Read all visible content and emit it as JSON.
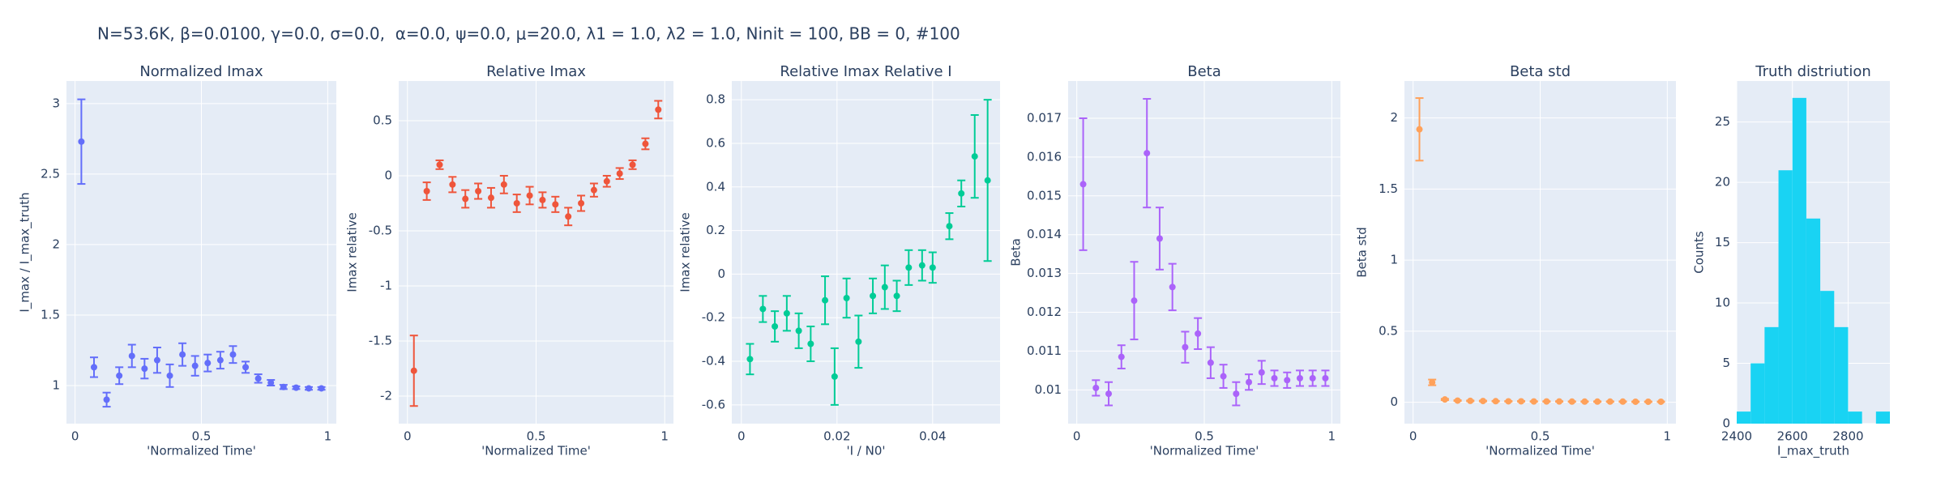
{
  "title": "N=53.6K, β=0.0100, γ=0.0, σ=0.0,  α=0.0, ψ=0.0, μ=20.0, λ1 = 1.0, λ2 = 1.0, Ninit = 100, BB = 0, #100",
  "chart_data": [
    {
      "type": "scatter",
      "title": "Normalized Imax",
      "xlabel": "'Normalized Time'",
      "ylabel": "I_max / I_max_truth",
      "color": "#636efa",
      "grid": true,
      "x": [
        0.025,
        0.075,
        0.125,
        0.175,
        0.225,
        0.275,
        0.325,
        0.375,
        0.425,
        0.475,
        0.525,
        0.575,
        0.625,
        0.675,
        0.725,
        0.775,
        0.825,
        0.875,
        0.925,
        0.975
      ],
      "values": [
        2.73,
        1.13,
        0.9,
        1.07,
        1.21,
        1.12,
        1.18,
        1.07,
        1.22,
        1.14,
        1.16,
        1.18,
        1.22,
        1.13,
        1.05,
        1.02,
        0.99,
        0.985,
        0.98,
        0.98
      ],
      "errors": [
        0.3,
        0.07,
        0.05,
        0.06,
        0.08,
        0.07,
        0.09,
        0.08,
        0.08,
        0.07,
        0.06,
        0.06,
        0.06,
        0.04,
        0.03,
        0.02,
        0.015,
        0.01,
        0.01,
        0.01
      ],
      "xlim": [
        -0.034,
        1.034
      ],
      "xticks": [
        0,
        0.5,
        1
      ],
      "ylim": [
        0.73,
        3.16
      ],
      "yticks": [
        1,
        1.5,
        2,
        2.5,
        3
      ]
    },
    {
      "type": "scatter",
      "title": "Relative Imax",
      "xlabel": "'Normalized Time'",
      "ylabel": "Imax relative",
      "color": "#EF553B",
      "grid": true,
      "x": [
        0.025,
        0.075,
        0.125,
        0.175,
        0.225,
        0.275,
        0.325,
        0.375,
        0.425,
        0.475,
        0.525,
        0.575,
        0.625,
        0.675,
        0.725,
        0.775,
        0.825,
        0.875,
        0.925,
        0.975
      ],
      "values": [
        -1.77,
        -0.14,
        0.1,
        -0.08,
        -0.21,
        -0.14,
        -0.2,
        -0.08,
        -0.25,
        -0.18,
        -0.22,
        -0.26,
        -0.37,
        -0.25,
        -0.13,
        -0.05,
        0.02,
        0.1,
        0.29,
        0.6
      ],
      "errors": [
        0.32,
        0.08,
        0.04,
        0.07,
        0.08,
        0.07,
        0.09,
        0.08,
        0.08,
        0.08,
        0.07,
        0.07,
        0.08,
        0.07,
        0.06,
        0.05,
        0.05,
        0.04,
        0.05,
        0.08
      ],
      "xlim": [
        -0.034,
        1.034
      ],
      "xticks": [
        0,
        0.5,
        1
      ],
      "ylim": [
        -2.25,
        0.86
      ],
      "yticks": [
        -2,
        -1.5,
        -1,
        -0.5,
        0,
        0.5
      ]
    },
    {
      "type": "scatter",
      "title": "Relative Imax Relative I",
      "xlabel": "'I / N0'",
      "ylabel": "Imax relative",
      "color": "#00cc96",
      "grid": true,
      "x": [
        0.0018,
        0.0045,
        0.007,
        0.0095,
        0.012,
        0.0145,
        0.0175,
        0.0195,
        0.022,
        0.0245,
        0.0275,
        0.03,
        0.0325,
        0.035,
        0.0378,
        0.04,
        0.0435,
        0.046,
        0.0488,
        0.0515
      ],
      "values": [
        -0.39,
        -0.16,
        -0.24,
        -0.18,
        -0.26,
        -0.32,
        -0.12,
        -0.47,
        -0.11,
        -0.31,
        -0.1,
        -0.06,
        -0.1,
        0.03,
        0.04,
        0.03,
        0.22,
        0.37,
        0.54,
        0.43
      ],
      "errors": [
        0.07,
        0.06,
        0.07,
        0.08,
        0.08,
        0.08,
        0.11,
        0.13,
        0.09,
        0.12,
        0.08,
        0.1,
        0.07,
        0.08,
        0.07,
        0.07,
        0.06,
        0.06,
        0.19,
        0.37
      ],
      "xlim": [
        -0.002,
        0.0541
      ],
      "xticks": [
        0,
        0.02,
        0.04
      ],
      "ylim": [
        -0.686,
        0.886
      ],
      "yticks": [
        -0.6,
        -0.4,
        -0.2,
        0,
        0.2,
        0.4,
        0.6,
        0.8
      ]
    },
    {
      "type": "scatter",
      "title": "Beta",
      "xlabel": "'Normalized Time'",
      "ylabel": "Beta",
      "color": "#ab63fa",
      "grid": true,
      "x": [
        0.025,
        0.075,
        0.125,
        0.175,
        0.225,
        0.275,
        0.325,
        0.375,
        0.425,
        0.475,
        0.525,
        0.575,
        0.625,
        0.675,
        0.725,
        0.775,
        0.825,
        0.875,
        0.925,
        0.975
      ],
      "values": [
        0.0153,
        0.01005,
        0.0099,
        0.01085,
        0.0123,
        0.0161,
        0.0139,
        0.01265,
        0.0111,
        0.01145,
        0.0107,
        0.01035,
        0.0099,
        0.0102,
        0.01045,
        0.0103,
        0.01025,
        0.0103,
        0.0103,
        0.0103
      ],
      "errors": [
        0.0017,
        0.0002,
        0.0003,
        0.0003,
        0.001,
        0.0014,
        0.0008,
        0.0006,
        0.0004,
        0.0004,
        0.0004,
        0.0003,
        0.0003,
        0.0002,
        0.0003,
        0.0002,
        0.0002,
        0.0002,
        0.0002,
        0.0002
      ],
      "xlim": [
        -0.034,
        1.034
      ],
      "xticks": [
        0,
        0.5,
        1
      ],
      "ylim": [
        0.00913,
        0.01796
      ],
      "yticks": [
        0.01,
        0.011,
        0.012,
        0.013,
        0.014,
        0.015,
        0.016,
        0.017
      ]
    },
    {
      "type": "scatter",
      "title": "Beta std",
      "xlabel": "'Normalized Time'",
      "ylabel": "Beta std",
      "color": "#FFA15A",
      "grid": true,
      "x": [
        0.025,
        0.075,
        0.125,
        0.175,
        0.225,
        0.275,
        0.325,
        0.375,
        0.425,
        0.475,
        0.525,
        0.575,
        0.625,
        0.675,
        0.725,
        0.775,
        0.825,
        0.875,
        0.925,
        0.975
      ],
      "values": [
        1.92,
        0.14,
        0.02,
        0.012,
        0.01,
        0.009,
        0.008,
        0.007,
        0.007,
        0.006,
        0.006,
        0.006,
        0.005,
        0.005,
        0.005,
        0.005,
        0.005,
        0.004,
        0.004,
        0.004
      ],
      "errors": [
        0.22,
        0.02,
        0.005,
        0.003,
        0.003,
        0.003,
        0.002,
        0.002,
        0.002,
        0.002,
        0.002,
        0.002,
        0.002,
        0.002,
        0.002,
        0.002,
        0.002,
        0.002,
        0.002,
        0.002
      ],
      "xlim": [
        -0.034,
        1.034
      ],
      "xticks": [
        0,
        0.5,
        1
      ],
      "ylim": [
        -0.15,
        2.26
      ],
      "yticks": [
        0,
        0.5,
        1,
        1.5,
        2
      ]
    },
    {
      "type": "histogram",
      "title": "Truth distriution",
      "xlabel": "I_max_truth",
      "ylabel": "Counts",
      "color": "#19d3f3",
      "grid": true,
      "bins": [
        2400,
        2450,
        2500,
        2550,
        2600,
        2650,
        2700,
        2750,
        2800,
        2850,
        2900,
        2950
      ],
      "values": [
        1,
        5,
        8,
        21,
        27,
        17,
        11,
        8,
        1,
        0,
        1
      ],
      "xlim": [
        2400,
        2950
      ],
      "xticks": [
        2400,
        2600,
        2800
      ],
      "ylim": [
        0,
        28.4
      ],
      "yticks": [
        0,
        5,
        10,
        15,
        20,
        25
      ]
    }
  ]
}
